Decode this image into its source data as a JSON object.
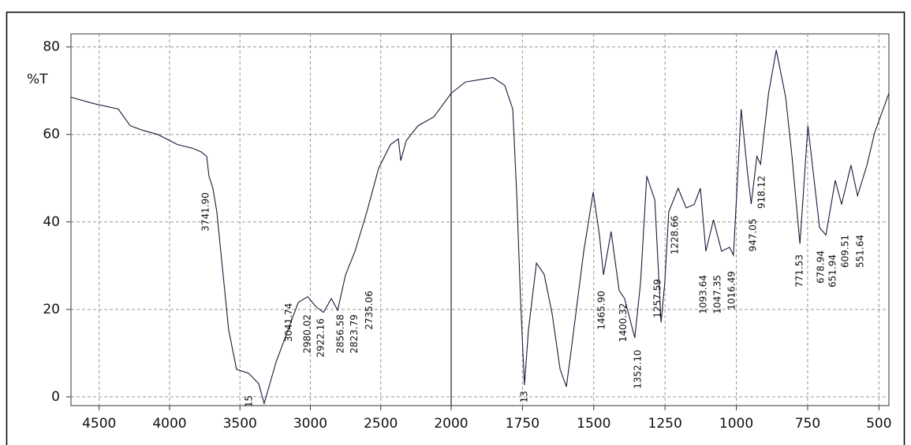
{
  "chart_data": {
    "type": "line",
    "ylabel": "%T",
    "color": "#1a1a3a",
    "annotation_color": "#2a2a8a",
    "grid": true,
    "xlim": [
      4700,
      465
    ],
    "x_break": 2000,
    "ylim": [
      -2,
      83
    ],
    "yticks": [
      0,
      20,
      40,
      60,
      80
    ],
    "xticks": [
      4500,
      4000,
      3500,
      3000,
      2500,
      2000,
      1750,
      1500,
      1250,
      1000,
      750,
      500
    ],
    "x": [
      4700,
      4532,
      4364,
      4280,
      4196,
      4084,
      3944,
      3832,
      3776,
      3736,
      3720,
      3692,
      3664,
      3636,
      3608,
      3580,
      3524,
      3440,
      3411,
      3367,
      3328,
      3243,
      3159,
      3086,
      3019,
      2963,
      2907,
      2851,
      2806,
      2750,
      2683,
      2599,
      2515,
      2431,
      2375,
      2358,
      2319,
      2235,
      2123,
      2000,
      1950,
      1895,
      1853,
      1812,
      1784,
      1770,
      1757,
      1743,
      1729,
      1701,
      1674,
      1646,
      1618,
      1596,
      1577,
      1535,
      1502,
      1480,
      1466,
      1439,
      1411,
      1392,
      1356,
      1336,
      1314,
      1286,
      1264,
      1251,
      1237,
      1204,
      1176,
      1148,
      1126,
      1107,
      1080,
      1052,
      1024,
      1010,
      983,
      961,
      948,
      928,
      915,
      887,
      860,
      827,
      805,
      777,
      749,
      708,
      686,
      653,
      631,
      598,
      575,
      542,
      515,
      465
    ],
    "values": [
      68.5,
      67,
      65.8,
      62,
      61,
      60,
      57.7,
      56.8,
      56,
      55,
      50.5,
      47.7,
      42.3,
      33.3,
      24.3,
      15.3,
      6.3,
      5.4,
      4.5,
      3,
      -1.5,
      8,
      15.3,
      21.6,
      22.9,
      20.7,
      19.3,
      22.5,
      19.8,
      27.9,
      33.3,
      42.3,
      52.3,
      57.7,
      59,
      54,
      58.6,
      62,
      64,
      69.4,
      72,
      72.6,
      73,
      71.2,
      65.8,
      46,
      22.5,
      2.7,
      15.3,
      30.6,
      28,
      19,
      6.3,
      2.3,
      11.7,
      33.3,
      46.8,
      37,
      27.9,
      37.8,
      24.3,
      22.5,
      13.5,
      26.1,
      50.5,
      45,
      17,
      26,
      42.3,
      47.7,
      43.2,
      44,
      47.7,
      33.3,
      40.5,
      33.3,
      34.2,
      32.4,
      65.8,
      51.3,
      44.1,
      55,
      53.2,
      69.4,
      79.3,
      68.5,
      55,
      35,
      62,
      38.7,
      37,
      49.5,
      44,
      53,
      46,
      53,
      60.4,
      69.4
    ],
    "annotations": [
      {
        "label": "3741.90",
        "x": 3741.9,
        "y": 42.3
      },
      {
        "label": "15",
        "x": 3435,
        "y": -1
      },
      {
        "label": "3041.74",
        "x": 3150,
        "y": 17
      },
      {
        "label": "2980.02",
        "x": 3020,
        "y": 14.4
      },
      {
        "label": "2922.16",
        "x": 2925,
        "y": 13.5
      },
      {
        "label": "2856.58",
        "x": 2785,
        "y": 14.4
      },
      {
        "label": "2823.79",
        "x": 2685,
        "y": 14.4
      },
      {
        "label": "2735.06",
        "x": 2580,
        "y": 19.8
      },
      {
        "label": "13",
        "x": 1743,
        "y": 0
      },
      {
        "label": "1465.90",
        "x": 1472,
        "y": 19.8
      },
      {
        "label": "1400.32",
        "x": 1395,
        "y": 17
      },
      {
        "label": "1352.10",
        "x": 1345,
        "y": 6.3
      },
      {
        "label": "1257.59",
        "x": 1275,
        "y": 22.5
      },
      {
        "label": "1228.66",
        "x": 1215,
        "y": 37
      },
      {
        "label": "1093.64",
        "x": 1115,
        "y": 23.4
      },
      {
        "label": "1047.35",
        "x": 1065,
        "y": 23.4
      },
      {
        "label": "1016.49",
        "x": 1015,
        "y": 24.3
      },
      {
        "label": "947.05",
        "x": 940,
        "y": 37
      },
      {
        "label": "918.12",
        "x": 910,
        "y": 46.8
      },
      {
        "label": "771.53",
        "x": 777,
        "y": 28.8
      },
      {
        "label": "678.94",
        "x": 703,
        "y": 29.7
      },
      {
        "label": "651.94",
        "x": 661,
        "y": 28.8
      },
      {
        "label": "609.51",
        "x": 617,
        "y": 33.3
      },
      {
        "label": "551.64",
        "x": 565,
        "y": 33.3
      }
    ]
  }
}
